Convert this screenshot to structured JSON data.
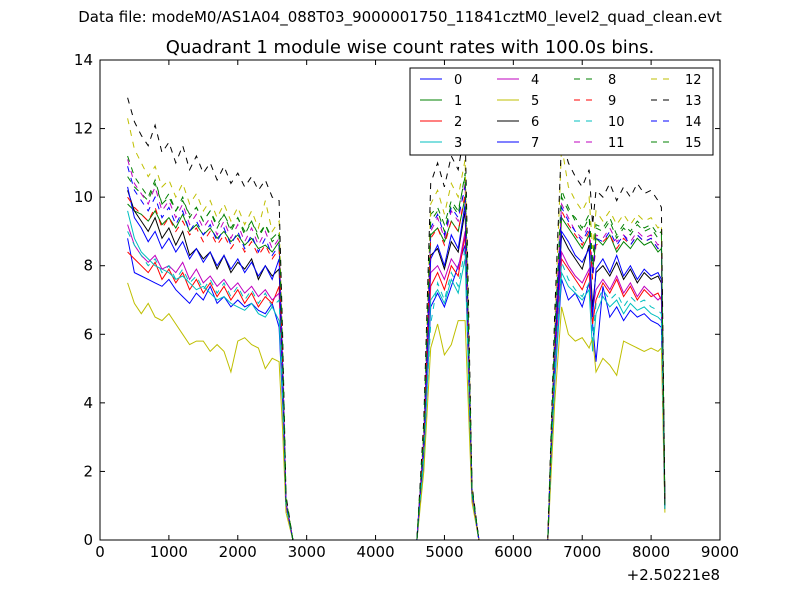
{
  "figure": {
    "suptitle": "Data file: modeM0/AS1A04_088T03_9000001750_11841cztM0_level2_quad_clean.evt"
  },
  "chart_data": {
    "type": "line",
    "title": "Quadrant 1 module wise count rates with 100.0s bins.",
    "xlabel": "",
    "ylabel": "",
    "x_offset_label": "+2.50221e8",
    "xlim": [
      0,
      9000
    ],
    "ylim": [
      0,
      14
    ],
    "xticks": [
      0,
      1000,
      2000,
      3000,
      4000,
      5000,
      6000,
      7000,
      8000,
      9000
    ],
    "yticks": [
      0,
      2,
      4,
      6,
      8,
      10,
      12,
      14
    ],
    "grid": false,
    "legend_placement": "top-right",
    "legend_columns": 4,
    "x": [
      400,
      500,
      600,
      700,
      800,
      900,
      1000,
      1100,
      1200,
      1300,
      1400,
      1500,
      1600,
      1700,
      1800,
      1900,
      2000,
      2100,
      2200,
      2300,
      2400,
      2500,
      2600,
      2650,
      2700,
      2800,
      3000,
      3500,
      4000,
      4500,
      4600,
      4700,
      4800,
      4900,
      5000,
      5100,
      5200,
      5300,
      5400,
      5500,
      6000,
      6500,
      6600,
      6700,
      6800,
      6900,
      7000,
      7100,
      7150,
      7200,
      7300,
      7400,
      7500,
      7600,
      7700,
      7800,
      7900,
      8000,
      8100,
      8150,
      8200
    ],
    "series": [
      {
        "name": "0",
        "color": "#0000ff",
        "dash": "solid",
        "values": [
          8.8,
          7.8,
          7.7,
          7.6,
          7.5,
          7.4,
          7.6,
          7.3,
          7.1,
          6.9,
          7.2,
          7.0,
          7.4,
          6.9,
          7.1,
          6.8,
          7.0,
          6.8,
          6.9,
          6.7,
          6.6,
          6.9,
          6.2,
          4.0,
          1.0,
          0.0,
          0,
          0,
          0,
          0,
          0,
          2.3,
          6.8,
          7.2,
          6.8,
          7.4,
          8.0,
          8.6,
          1.3,
          0,
          0,
          0,
          4.6,
          7.6,
          7.0,
          7.2,
          6.8,
          7.5,
          6.3,
          5.2,
          7.4,
          6.5,
          6.8,
          6.4,
          6.7,
          6.5,
          6.6,
          6.4,
          6.3,
          6.2,
          0.9
        ]
      },
      {
        "name": "1",
        "color": "#008000",
        "dash": "solid",
        "values": [
          9.8,
          9.6,
          9.5,
          9.3,
          9.6,
          9.2,
          9.4,
          9.1,
          9.5,
          9.0,
          9.2,
          8.9,
          9.1,
          8.8,
          9.0,
          8.7,
          8.9,
          8.6,
          8.8,
          8.5,
          8.6,
          8.4,
          8.7,
          5.0,
          1.1,
          0.0,
          0,
          0,
          0,
          0,
          0,
          2.9,
          8.9,
          9.1,
          8.7,
          9.3,
          9.0,
          10.0,
          1.4,
          0,
          0,
          0,
          5.8,
          9.4,
          9.1,
          8.8,
          8.5,
          8.9,
          7.8,
          8.8,
          8.6,
          8.9,
          8.4,
          8.7,
          8.5,
          8.8,
          8.6,
          8.7,
          8.4,
          8.5,
          1.0
        ]
      },
      {
        "name": "2",
        "color": "#ff0000",
        "dash": "solid",
        "values": [
          8.4,
          8.2,
          8.0,
          7.8,
          8.1,
          7.6,
          7.9,
          7.5,
          7.8,
          7.3,
          7.6,
          7.2,
          7.5,
          7.1,
          7.4,
          7.0,
          7.3,
          6.9,
          7.2,
          6.8,
          7.1,
          6.9,
          7.4,
          4.5,
          1.0,
          0.0,
          0,
          0,
          0,
          0,
          0,
          2.6,
          7.4,
          7.8,
          7.3,
          8.0,
          7.7,
          8.9,
          1.3,
          0,
          0,
          0,
          5.0,
          8.2,
          7.9,
          7.6,
          7.3,
          7.8,
          6.3,
          7.0,
          7.5,
          7.2,
          7.6,
          7.1,
          7.4,
          7.0,
          7.3,
          7.1,
          7.2,
          7.0,
          0.9
        ]
      },
      {
        "name": "3",
        "color": "#00bfbf",
        "dash": "solid",
        "values": [
          9.6,
          8.8,
          8.4,
          8.2,
          8.0,
          7.9,
          7.8,
          7.6,
          7.7,
          7.5,
          7.3,
          7.4,
          7.2,
          7.0,
          7.1,
          6.9,
          6.8,
          6.7,
          6.9,
          6.6,
          6.5,
          6.8,
          6.4,
          4.2,
          1.0,
          0.0,
          0,
          0,
          0,
          0,
          0,
          2.4,
          7.0,
          7.3,
          6.9,
          7.6,
          7.2,
          8.2,
          1.3,
          0,
          0,
          0,
          4.7,
          7.8,
          7.4,
          7.2,
          7.0,
          7.3,
          5.5,
          6.6,
          7.1,
          6.8,
          7.0,
          6.6,
          6.9,
          6.7,
          6.8,
          6.6,
          6.5,
          6.4,
          0.9
        ]
      },
      {
        "name": "4",
        "color": "#bf00bf",
        "dash": "solid",
        "values": [
          9.2,
          8.6,
          8.3,
          8.1,
          8.3,
          7.9,
          8.0,
          7.8,
          8.1,
          7.6,
          7.9,
          7.5,
          7.7,
          7.4,
          7.6,
          7.3,
          7.5,
          7.2,
          7.4,
          7.1,
          7.3,
          7.0,
          7.2,
          4.6,
          1.0,
          0.0,
          0,
          0,
          0,
          0,
          0,
          2.7,
          7.8,
          8.0,
          7.6,
          8.2,
          7.9,
          9.0,
          1.3,
          0,
          0,
          0,
          5.2,
          8.4,
          8.0,
          7.7,
          7.5,
          7.9,
          6.7,
          7.3,
          7.6,
          7.3,
          7.7,
          7.2,
          7.5,
          7.1,
          7.4,
          7.2,
          7.0,
          7.1,
          0.9
        ]
      },
      {
        "name": "5",
        "color": "#bfbf00",
        "dash": "solid",
        "values": [
          7.5,
          6.9,
          6.6,
          6.9,
          6.5,
          6.4,
          6.6,
          6.3,
          6.0,
          5.7,
          5.8,
          5.8,
          5.5,
          5.7,
          5.5,
          4.9,
          5.8,
          5.9,
          5.7,
          5.6,
          5.0,
          5.3,
          5.2,
          3.2,
          0.8,
          0.0,
          0,
          0,
          0,
          0,
          0,
          2.0,
          5.6,
          6.3,
          5.4,
          5.7,
          6.4,
          6.4,
          1.1,
          0,
          0,
          0,
          4.0,
          6.8,
          6.0,
          5.8,
          5.9,
          5.6,
          5.9,
          4.9,
          5.3,
          5.1,
          4.8,
          5.8,
          5.7,
          5.6,
          5.5,
          5.6,
          5.5,
          5.6,
          0.8
        ]
      },
      {
        "name": "6",
        "color": "#000000",
        "dash": "solid",
        "values": [
          10.2,
          9.6,
          9.3,
          9.0,
          9.4,
          8.8,
          9.1,
          8.6,
          9.0,
          8.3,
          8.5,
          8.2,
          8.4,
          7.9,
          8.3,
          7.8,
          8.1,
          7.9,
          8.2,
          7.6,
          8.0,
          7.7,
          7.9,
          4.9,
          1.1,
          0.0,
          0,
          0,
          0,
          0,
          0,
          2.8,
          8.3,
          8.5,
          7.9,
          8.7,
          8.4,
          9.6,
          1.4,
          0,
          0,
          0,
          5.5,
          8.9,
          8.5,
          8.2,
          7.9,
          8.6,
          6.8,
          7.8,
          8.0,
          7.7,
          8.1,
          7.6,
          7.9,
          7.5,
          7.8,
          7.6,
          7.7,
          7.5,
          1.0
        ]
      },
      {
        "name": "7",
        "color": "#0000ff",
        "dash": "solid",
        "values": [
          10.3,
          9.4,
          9.1,
          8.7,
          9.0,
          8.5,
          8.8,
          8.4,
          8.7,
          8.2,
          8.5,
          8.1,
          8.4,
          8.0,
          8.3,
          7.9,
          8.2,
          7.8,
          8.1,
          7.7,
          8.0,
          7.6,
          8.2,
          5.0,
          1.1,
          0.0,
          0,
          0,
          0,
          0,
          0,
          2.9,
          8.2,
          8.6,
          8.0,
          8.9,
          8.5,
          9.8,
          1.4,
          0,
          0,
          0,
          5.6,
          9.0,
          8.7,
          8.3,
          8.1,
          8.5,
          6.5,
          7.9,
          8.2,
          7.8,
          8.3,
          7.7,
          8.0,
          7.6,
          7.9,
          7.7,
          7.8,
          7.6,
          1.0
        ]
      },
      {
        "name": "8",
        "color": "#008000",
        "dash": "dash",
        "values": [
          10.6,
          10.3,
          10.1,
          9.9,
          10.4,
          9.8,
          10.0,
          9.6,
          9.9,
          9.5,
          9.7,
          9.3,
          9.6,
          9.2,
          9.5,
          9.1,
          9.4,
          9.0,
          9.3,
          8.9,
          9.2,
          8.8,
          9.0,
          5.5,
          1.2,
          0.0,
          0,
          0,
          0,
          0,
          0,
          3.1,
          9.5,
          9.7,
          9.2,
          9.9,
          9.6,
          10.6,
          1.5,
          0,
          0,
          0,
          6.0,
          10.0,
          9.6,
          9.4,
          9.1,
          9.5,
          8.2,
          9.2,
          9.1,
          9.4,
          8.9,
          9.2,
          9.0,
          9.3,
          9.1,
          9.2,
          8.9,
          9.0,
          1.0
        ]
      },
      {
        "name": "9",
        "color": "#ff0000",
        "dash": "dash",
        "values": [
          10.0,
          9.7,
          9.5,
          9.3,
          9.7,
          9.1,
          9.4,
          9.0,
          9.3,
          8.9,
          9.1,
          8.7,
          9.0,
          8.6,
          8.9,
          8.5,
          8.8,
          8.4,
          8.7,
          8.3,
          8.6,
          8.2,
          8.5,
          5.2,
          1.1,
          0.0,
          0,
          0,
          0,
          0,
          0,
          2.9,
          8.8,
          9.1,
          8.6,
          9.3,
          9.0,
          10.1,
          1.4,
          0,
          0,
          0,
          5.7,
          9.6,
          9.2,
          8.9,
          8.6,
          9.0,
          7.6,
          8.6,
          8.7,
          8.9,
          8.5,
          8.8,
          8.6,
          8.9,
          8.7,
          8.8,
          8.5,
          8.6,
          1.0
        ]
      },
      {
        "name": "10",
        "color": "#00bfbf",
        "dash": "dash",
        "values": [
          9.0,
          8.6,
          8.3,
          8.0,
          8.2,
          7.8,
          8.0,
          7.6,
          7.9,
          7.5,
          7.7,
          7.3,
          7.6,
          7.2,
          7.5,
          7.1,
          7.4,
          7.0,
          7.3,
          6.9,
          7.2,
          6.8,
          7.0,
          4.4,
          1.0,
          0.0,
          0,
          0,
          0,
          0,
          0,
          2.5,
          6.3,
          7.5,
          7.0,
          7.8,
          7.4,
          8.5,
          1.3,
          0,
          0,
          0,
          4.9,
          8.1,
          7.6,
          7.3,
          7.1,
          7.5,
          5.8,
          6.9,
          7.3,
          7.0,
          7.2,
          6.8,
          7.1,
          6.9,
          7.0,
          6.8,
          6.7,
          6.6,
          0.9
        ]
      },
      {
        "name": "11",
        "color": "#bf00bf",
        "dash": "dash",
        "values": [
          11.1,
          10.4,
          10.1,
          9.8,
          10.3,
          9.6,
          9.9,
          9.4,
          9.8,
          9.2,
          9.5,
          9.1,
          9.4,
          8.9,
          9.3,
          8.8,
          9.2,
          8.7,
          9.1,
          8.6,
          9.0,
          8.5,
          8.8,
          5.4,
          1.1,
          0.0,
          0,
          0,
          0,
          0,
          0,
          3.0,
          9.0,
          9.4,
          8.8,
          9.6,
          9.3,
          10.4,
          1.5,
          0,
          0,
          0,
          5.9,
          9.8,
          9.4,
          9.0,
          8.8,
          9.2,
          7.9,
          8.9,
          8.8,
          9.1,
          8.7,
          8.9,
          8.7,
          9.0,
          8.8,
          8.9,
          8.6,
          8.7,
          1.0
        ]
      },
      {
        "name": "12",
        "color": "#bfbf00",
        "dash": "dash",
        "values": [
          12.3,
          11.4,
          11.0,
          10.6,
          10.9,
          10.3,
          10.5,
          10.0,
          10.4,
          9.8,
          10.1,
          9.6,
          9.9,
          9.4,
          9.8,
          9.3,
          9.7,
          9.2,
          9.6,
          9.1,
          9.9,
          9.0,
          9.3,
          5.7,
          1.2,
          0.0,
          0,
          0,
          0,
          0,
          0,
          3.2,
          9.8,
          10.2,
          9.5,
          10.4,
          10.0,
          11.1,
          1.5,
          0,
          0,
          0,
          6.2,
          11.5,
          10.3,
          9.9,
          9.6,
          10.0,
          8.5,
          9.6,
          9.3,
          9.6,
          9.2,
          9.5,
          9.2,
          9.5,
          9.3,
          9.4,
          9.1,
          9.2,
          1.1
        ]
      },
      {
        "name": "13",
        "color": "#000000",
        "dash": "dash",
        "values": [
          12.9,
          12.2,
          11.8,
          11.5,
          12.1,
          11.3,
          11.6,
          11.0,
          11.5,
          10.8,
          11.2,
          10.7,
          11.0,
          10.5,
          10.9,
          10.4,
          10.7,
          10.3,
          10.6,
          10.2,
          10.5,
          10.0,
          9.9,
          6.0,
          1.3,
          0.0,
          0,
          0,
          0,
          0,
          0,
          3.5,
          10.4,
          11.0,
          10.3,
          11.2,
          10.8,
          12.0,
          1.6,
          0,
          0,
          0,
          6.6,
          11.7,
          11.0,
          10.6,
          10.3,
          10.8,
          9.2,
          10.2,
          10.0,
          10.4,
          9.9,
          10.3,
          10.0,
          10.4,
          10.1,
          10.2,
          9.9,
          9.7,
          1.1
        ]
      },
      {
        "name": "14",
        "color": "#0000ff",
        "dash": "dash",
        "values": [
          10.9,
          10.2,
          9.9,
          9.6,
          10.0,
          9.4,
          9.7,
          9.2,
          9.6,
          9.0,
          9.3,
          8.9,
          9.2,
          8.7,
          9.1,
          8.6,
          9.0,
          8.5,
          8.9,
          8.4,
          8.8,
          8.3,
          8.6,
          5.3,
          1.1,
          0.0,
          0,
          0,
          0,
          0,
          0,
          3.0,
          9.1,
          9.5,
          8.9,
          9.7,
          9.4,
          10.3,
          1.4,
          0,
          0,
          0,
          5.8,
          9.7,
          9.3,
          9.0,
          8.7,
          9.1,
          7.7,
          8.8,
          8.7,
          9.0,
          8.6,
          8.9,
          8.6,
          8.9,
          8.7,
          8.8,
          8.5,
          8.6,
          1.0
        ]
      },
      {
        "name": "15",
        "color": "#008000",
        "dash": "dash",
        "values": [
          11.2,
          10.6,
          10.3,
          10.0,
          10.5,
          9.8,
          10.1,
          9.6,
          10.0,
          9.4,
          9.7,
          9.3,
          9.6,
          9.1,
          9.5,
          9.0,
          9.4,
          8.9,
          9.3,
          8.8,
          9.2,
          8.7,
          8.9,
          5.5,
          1.2,
          0.0,
          0,
          0,
          0,
          0,
          0,
          3.1,
          9.3,
          9.6,
          9.0,
          9.8,
          9.5,
          10.7,
          1.5,
          0,
          0,
          0,
          6.0,
          10.2,
          9.7,
          9.3,
          9.0,
          9.4,
          8.0,
          9.1,
          9.0,
          9.3,
          8.8,
          9.1,
          8.9,
          9.2,
          9.0,
          9.1,
          8.8,
          8.9,
          1.0
        ]
      }
    ]
  }
}
